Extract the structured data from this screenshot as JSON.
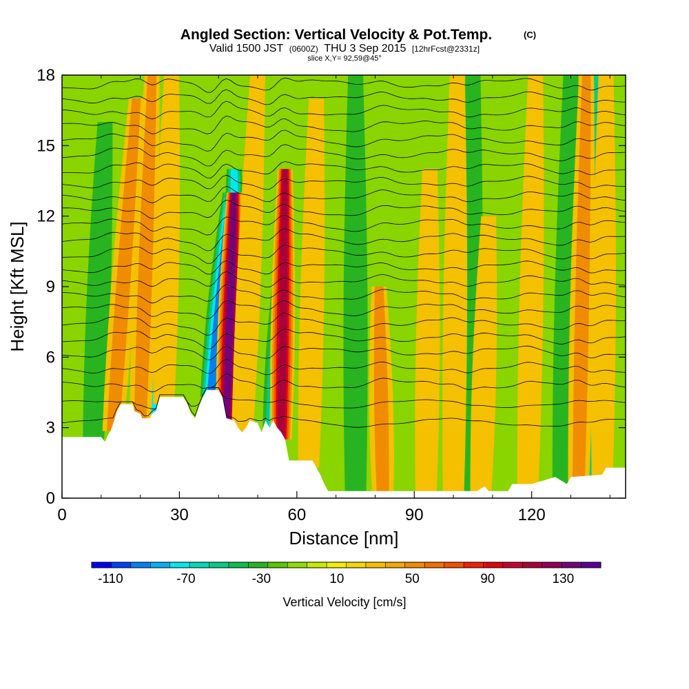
{
  "chart_data": {
    "type": "heatmap",
    "title_main": "Angled Section: Vertical Velocity & Pot.Temp.",
    "title_units": "(C)",
    "subtitle_parts": [
      "Valid 1500 JST",
      "(0600Z)",
      "THU 3 Sep 2015",
      "[12hrFcst@2331z]"
    ],
    "slice_label": "slice X,Y= 92,59@45°",
    "xlabel": "Distance [nm]",
    "ylabel": "Height [Kft MSL]",
    "xlim": [
      0,
      144
    ],
    "ylim": [
      0,
      18
    ],
    "xticks": [
      0,
      30,
      60,
      90,
      120
    ],
    "yticks": [
      0,
      3,
      6,
      9,
      12,
      15,
      18
    ],
    "colorbar": {
      "title": "Vertical Velocity [cm/s]",
      "labels": [
        -110,
        -70,
        -30,
        10,
        50,
        90,
        130
      ],
      "min": -120,
      "max": 150,
      "colors": [
        "#0000f0",
        "#0040f0",
        "#0080f0",
        "#00b0f0",
        "#00e8ee",
        "#00d8b8",
        "#00cc88",
        "#10bc50",
        "#28b420",
        "#58c800",
        "#90dc00",
        "#c8ec00",
        "#f0f000",
        "#f4d800",
        "#f4c000",
        "#f4a800",
        "#f08c00",
        "#f07000",
        "#f05000",
        "#f02000",
        "#e00010",
        "#c80030",
        "#a8003c",
        "#90005a",
        "#74007c",
        "#5a0090"
      ]
    },
    "terrain_profile": [
      [
        0,
        2.6
      ],
      [
        10,
        2.6
      ],
      [
        11,
        2.4
      ],
      [
        11.5,
        2.6
      ],
      [
        12.5,
        2.9
      ],
      [
        13.5,
        3.4
      ],
      [
        14,
        3.7
      ],
      [
        15,
        4.0
      ],
      [
        18,
        4.0
      ],
      [
        18.5,
        3.7
      ],
      [
        20,
        3.6
      ],
      [
        20.5,
        3.4
      ],
      [
        22.5,
        3.4
      ],
      [
        23,
        3.6
      ],
      [
        24,
        3.7
      ],
      [
        25,
        4.3
      ],
      [
        31,
        4.3
      ],
      [
        32,
        4.0
      ],
      [
        33,
        3.6
      ],
      [
        34,
        3.4
      ],
      [
        35,
        3.9
      ],
      [
        36,
        4.3
      ],
      [
        37,
        4.6
      ],
      [
        40,
        4.6
      ],
      [
        41,
        4.3
      ],
      [
        42,
        3.4
      ],
      [
        44,
        3.3
      ],
      [
        45,
        3.0
      ],
      [
        46,
        2.8
      ],
      [
        47,
        3.0
      ],
      [
        48,
        3.3
      ],
      [
        50,
        3.2
      ],
      [
        51,
        2.8
      ],
      [
        52,
        3.3
      ],
      [
        53,
        3.0
      ],
      [
        54,
        3.3
      ],
      [
        55,
        3.0
      ],
      [
        56,
        2.8
      ],
      [
        57,
        2.5
      ],
      [
        58,
        1.6
      ],
      [
        64,
        1.6
      ],
      [
        65,
        1.3
      ],
      [
        66,
        1.0
      ],
      [
        67,
        0.6
      ],
      [
        68,
        0.3
      ],
      [
        78,
        0.3
      ],
      [
        79,
        0.3
      ],
      [
        92,
        0.3
      ],
      [
        95,
        0.3
      ],
      [
        106,
        0.3
      ],
      [
        108,
        0.5
      ],
      [
        109,
        0.3
      ],
      [
        114,
        0.3
      ],
      [
        115,
        0.6
      ],
      [
        120,
        0.6
      ],
      [
        126,
        0.9
      ],
      [
        129,
        0.6
      ],
      [
        130,
        0.9
      ],
      [
        138,
        1.0
      ],
      [
        139,
        1.3
      ],
      [
        144,
        1.3
      ]
    ],
    "updraft_bands": [
      {
        "x": 13,
        "w": 40,
        "x_lean": 6,
        "top": 17
      },
      {
        "x": 20,
        "w": 55,
        "x_lean": 3,
        "top": 18
      },
      {
        "x": 26,
        "w": 35,
        "x_lean": 2,
        "top": 18
      },
      {
        "x": 42,
        "w": 130,
        "x_lean": 2,
        "top": 13
      },
      {
        "x": 46,
        "w": 35,
        "x_lean": 4,
        "top": 18
      },
      {
        "x": 56,
        "w": 115,
        "x_lean": 1,
        "top": 14
      },
      {
        "x": 63,
        "w": 25,
        "x_lean": 2,
        "top": 17
      },
      {
        "x": 82,
        "w": 40,
        "x_lean": -1,
        "top": 9
      },
      {
        "x": 93,
        "w": 25,
        "x_lean": 1,
        "top": 14
      },
      {
        "x": 100,
        "w": 35,
        "x_lean": 1,
        "top": 18
      },
      {
        "x": 107,
        "w": 25,
        "x_lean": 2,
        "top": 12
      },
      {
        "x": 119,
        "w": 35,
        "x_lean": 2,
        "top": 18
      },
      {
        "x": 132,
        "w": 40,
        "x_lean": 2,
        "top": 18
      },
      {
        "x": 138,
        "w": 25,
        "x_lean": 1,
        "top": 18
      }
    ],
    "downdraft_bands": [
      {
        "x": 8,
        "w": -15,
        "x_lean": 3,
        "top": 16
      },
      {
        "x": 23,
        "w": -70,
        "x_lean": 4,
        "top": 15
      },
      {
        "x": 38,
        "w": -95,
        "x_lean": 5,
        "top": 13
      },
      {
        "x": 44,
        "w": -60,
        "x_lean": 0,
        "top": 14
      },
      {
        "x": 54,
        "w": -75,
        "x_lean": 3,
        "top": 11
      },
      {
        "x": 75,
        "w": -25,
        "x_lean": 0,
        "top": 18
      },
      {
        "x": 104,
        "w": -25,
        "x_lean": 1,
        "top": 18
      },
      {
        "x": 128,
        "w": -30,
        "x_lean": 2,
        "top": 18
      },
      {
        "x": 135,
        "w": -45,
        "x_lean": 2,
        "top": 18
      }
    ],
    "isentrope_heights": [
      3.2,
      4.0,
      4.8,
      5.5,
      6.2,
      6.8,
      7.4,
      8.0,
      8.6,
      9.2,
      9.8,
      10.4,
      11.0,
      11.6,
      12.2,
      12.8,
      13.4,
      14.0,
      14.6,
      15.2,
      15.8,
      16.4,
      17.0,
      17.6
    ]
  }
}
